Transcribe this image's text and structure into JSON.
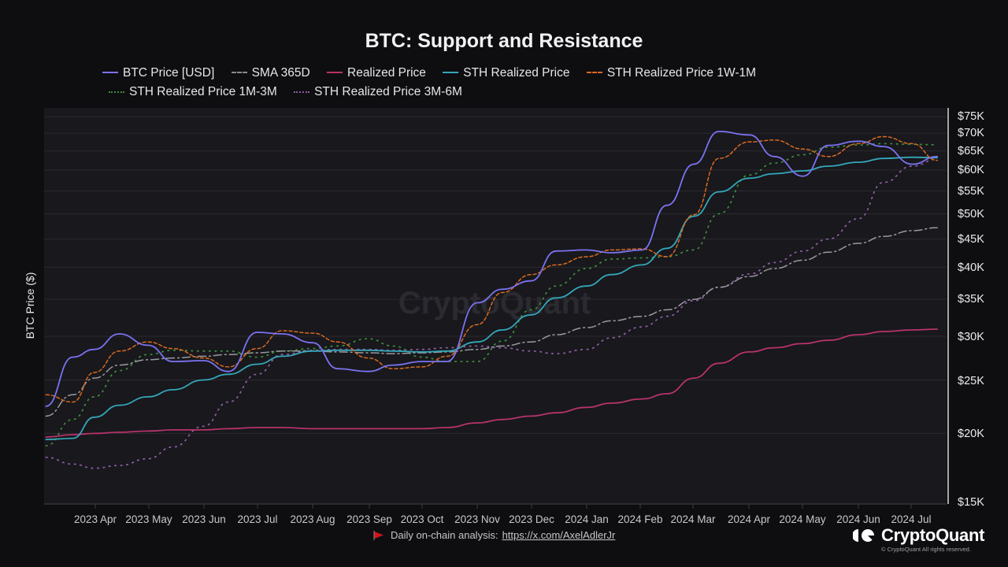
{
  "header": {
    "title": "BTC: Support and Resistance"
  },
  "legend": [
    {
      "label": "BTC Price [USD]",
      "color": "#7b72f0",
      "style": "solid"
    },
    {
      "label": "SMA 365D",
      "color": "#9a9a9e",
      "style": "dashdot"
    },
    {
      "label": "Realized Price",
      "color": "#b8336a",
      "style": "solid"
    },
    {
      "label": "STH Realized Price",
      "color": "#34a6b8",
      "style": "solid"
    },
    {
      "label": "STH Realized Price 1W-1M",
      "color": "#d86a1f",
      "style": "dashed"
    },
    {
      "label": "STH Realized Price 1M-3M",
      "color": "#3d8a3a",
      "style": "dotted"
    },
    {
      "label": "STH Realized Price 3M-6M",
      "color": "#8a5c9e",
      "style": "dotted"
    }
  ],
  "axes": {
    "y_label": "BTC Price ($)",
    "y_ticks": [
      "$75K",
      "$70K",
      "$65K",
      "$60K",
      "$55K",
      "$50K",
      "$45K",
      "$40K",
      "$35K",
      "$30K",
      "$25K",
      "$20K",
      "$15K"
    ],
    "x_ticks": [
      "2023 Apr",
      "2023 May",
      "2023 Jun",
      "2023 Jul",
      "2023 Aug",
      "2023 Sep",
      "2023 Oct",
      "2023 Nov",
      "2023 Dec",
      "2024 Jan",
      "2024 Feb",
      "2024 Mar",
      "2024 Apr",
      "2024 May",
      "2024 Jun",
      "2024 Jul"
    ]
  },
  "watermark": "CryptoQuant",
  "footer": {
    "text": "Daily on-chain analysis:",
    "link": "https://x.com/AxelAdlerJr",
    "flag_icon": "red-flag-icon"
  },
  "brand": {
    "name": "CryptoQuant",
    "copyright": "© CryptoQuant All rights reserved."
  },
  "chart_data": {
    "type": "line",
    "title": "BTC: Support and Resistance",
    "xlabel": "",
    "ylabel": "BTC Price ($)",
    "yscale": "log",
    "ylim": [
      15000,
      75000
    ],
    "grid": true,
    "legend_position": "top",
    "x": [
      "2023-03-05",
      "2023-03-20",
      "2023-04-01",
      "2023-04-15",
      "2023-05-01",
      "2023-05-15",
      "2023-06-01",
      "2023-06-15",
      "2023-07-01",
      "2023-07-15",
      "2023-08-01",
      "2023-08-15",
      "2023-09-01",
      "2023-09-15",
      "2023-10-01",
      "2023-10-15",
      "2023-11-01",
      "2023-11-15",
      "2023-12-01",
      "2023-12-15",
      "2024-01-01",
      "2024-01-15",
      "2024-02-01",
      "2024-02-15",
      "2024-03-01",
      "2024-03-15",
      "2024-04-01",
      "2024-04-15",
      "2024-05-01",
      "2024-05-15",
      "2024-06-01",
      "2024-06-15",
      "2024-07-01",
      "2024-07-15"
    ],
    "series": [
      {
        "name": "BTC Price [USD]",
        "values": [
          22400,
          27500,
          28400,
          30300,
          28900,
          27000,
          27100,
          25900,
          30500,
          30300,
          29200,
          26200,
          25900,
          26600,
          27000,
          27000,
          34500,
          36500,
          37800,
          42800,
          43000,
          42500,
          43000,
          51800,
          61500,
          70500,
          69500,
          63500,
          58500,
          66500,
          67700,
          66200,
          61500,
          63500
        ]
      },
      {
        "name": "SMA 365D",
        "values": [
          21500,
          23500,
          25200,
          26600,
          27200,
          27400,
          27600,
          27800,
          28000,
          28200,
          28200,
          28100,
          28000,
          27900,
          28000,
          28100,
          28400,
          28800,
          29300,
          30200,
          31100,
          32000,
          32600,
          33500,
          35000,
          36800,
          38500,
          39800,
          41200,
          42600,
          44200,
          45500,
          46600,
          47200
        ]
      },
      {
        "name": "Realized Price",
        "values": [
          19700,
          19900,
          20000,
          20100,
          20200,
          20300,
          20300,
          20400,
          20500,
          20500,
          20400,
          20400,
          20400,
          20400,
          20400,
          20500,
          20900,
          21200,
          21500,
          21800,
          22300,
          22700,
          23100,
          23600,
          25200,
          26800,
          28100,
          28600,
          29100,
          29500,
          30200,
          30600,
          30800,
          30900
        ]
      },
      {
        "name": "STH Realized Price",
        "values": [
          19500,
          19600,
          21400,
          22500,
          23300,
          24000,
          25000,
          25600,
          26700,
          27600,
          28200,
          28300,
          28300,
          28200,
          28100,
          28200,
          29300,
          30800,
          32800,
          35200,
          37000,
          38800,
          40400,
          43300,
          49500,
          54800,
          58000,
          59100,
          59800,
          61000,
          62000,
          63000,
          63300,
          63200
        ]
      },
      {
        "name": "STH Realized Price 1W-1M",
        "values": [
          23500,
          22800,
          25800,
          28200,
          29300,
          28500,
          27400,
          26400,
          28500,
          30700,
          30400,
          29300,
          27400,
          26200,
          26400,
          27600,
          31500,
          36000,
          38800,
          40400,
          41800,
          43000,
          43200,
          41800,
          49800,
          63000,
          67500,
          68000,
          65500,
          63500,
          67000,
          69000,
          67000,
          62500
        ]
      },
      {
        "name": "STH Realized Price 1M-3M",
        "values": [
          19000,
          21200,
          23300,
          26000,
          27800,
          28300,
          28200,
          28200,
          27500,
          28200,
          28500,
          28800,
          29700,
          28800,
          27500,
          27000,
          27000,
          29400,
          33500,
          37000,
          39800,
          41400,
          41600,
          41800,
          43000,
          50000,
          58800,
          61800,
          64000,
          66000,
          66600,
          67000,
          66800,
          66700
        ]
      },
      {
        "name": "STH Realized Price 3M-6M",
        "values": [
          18100,
          17600,
          17300,
          17500,
          18000,
          18900,
          20600,
          22800,
          25600,
          27800,
          28300,
          28400,
          28400,
          28300,
          28400,
          28600,
          28800,
          28600,
          28200,
          27900,
          28400,
          29800,
          31200,
          32600,
          34800,
          36800,
          38900,
          40800,
          42800,
          45000,
          49000,
          57000,
          61000,
          62800
        ]
      }
    ]
  }
}
